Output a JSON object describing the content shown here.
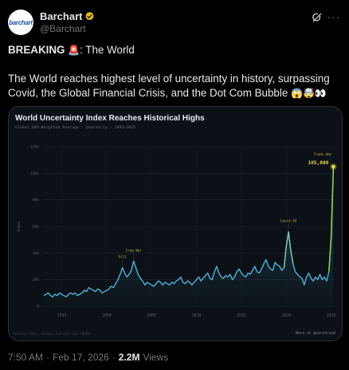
{
  "author": {
    "display_name": "Barchart",
    "handle": "@Barchart",
    "avatar_text": "barchart",
    "verified_color": "#e2b719"
  },
  "tweet": {
    "line1_bold": "BREAKING",
    "line1_emoji": "🚨",
    "line1_rest": ": The World",
    "line2": "The World reaches highest level of uncertainty in history, surpassing",
    "line3": "Covid, the Global Financial Crisis, and the Dot Com Bubble",
    "line3_emoji": "😱🤯👀"
  },
  "chart_data": {
    "type": "line",
    "title": "World Uncertainty Index Reaches Historical Highs",
    "subtitle": "Global GDP-Weighted Average · Quarterly · 1993–2025",
    "ylabel": "Index",
    "ylim": [
      0,
      120000
    ],
    "yticks": [
      {
        "value": 0,
        "label": "0"
      },
      {
        "value": 20000,
        "label": "20k"
      },
      {
        "value": 40000,
        "label": "40k"
      },
      {
        "value": 60000,
        "label": "60k"
      },
      {
        "value": 80000,
        "label": "80k"
      },
      {
        "value": 100000,
        "label": "100k"
      },
      {
        "value": 120000,
        "label": "120k"
      }
    ],
    "xlim": [
      1993,
      2025.3
    ],
    "xticks": [
      {
        "value": 1995,
        "label": "1995"
      },
      {
        "value": 2000,
        "label": "2000"
      },
      {
        "value": 2005,
        "label": "2005"
      },
      {
        "value": 2010,
        "label": "2010"
      },
      {
        "value": 2015,
        "label": "2015"
      },
      {
        "value": 2020,
        "label": "2020"
      },
      {
        "value": 2025,
        "label": "2025"
      }
    ],
    "grid": true,
    "line_color": "#4fb3d9",
    "highlight_color": "#8fd14f",
    "peak_color": "#e8d44d",
    "series": [
      {
        "x": [
          1993.0,
          1993.25,
          1993.5,
          1993.75,
          1994.0,
          1994.25,
          1994.5,
          1994.75,
          1995.0,
          1995.25,
          1995.5,
          1995.75,
          1996.0,
          1996.25,
          1996.5,
          1996.75,
          1997.0,
          1997.25,
          1997.5,
          1997.75,
          1998.0,
          1998.25,
          1998.5,
          1998.75,
          1999.0,
          1999.25,
          1999.5,
          1999.75,
          2000.0,
          2000.25,
          2000.5,
          2000.75,
          2001.0,
          2001.25,
          2001.5,
          2001.75,
          2002.0,
          2002.25,
          2002.5,
          2002.75,
          2003.0,
          2003.25,
          2003.5,
          2003.75,
          2004.0,
          2004.25,
          2004.5,
          2004.75,
          2005.0,
          2005.25,
          2005.5,
          2005.75,
          2006.0,
          2006.25,
          2006.5,
          2006.75,
          2007.0,
          2007.25,
          2007.5,
          2007.75,
          2008.0,
          2008.25,
          2008.5,
          2008.75,
          2009.0,
          2009.25,
          2009.5,
          2009.75,
          2010.0,
          2010.25,
          2010.5,
          2010.75,
          2011.0,
          2011.25,
          2011.5,
          2011.75,
          2012.0,
          2012.25,
          2012.5,
          2012.75,
          2013.0,
          2013.25,
          2013.5,
          2013.75,
          2014.0,
          2014.25,
          2014.5,
          2014.75,
          2015.0,
          2015.25,
          2015.5,
          2015.75,
          2016.0,
          2016.25,
          2016.5,
          2016.75,
          2017.0,
          2017.25,
          2017.5,
          2017.75,
          2018.0,
          2018.25,
          2018.5,
          2018.75,
          2019.0,
          2019.25,
          2019.5,
          2019.75,
          2020.0,
          2020.25,
          2020.5,
          2020.75,
          2021.0,
          2021.25,
          2021.5,
          2021.75,
          2022.0,
          2022.25,
          2022.5,
          2022.75,
          2023.0,
          2023.25,
          2023.5,
          2023.75,
          2024.0,
          2024.25,
          2024.5,
          2024.75,
          2025.0,
          2025.25
        ],
        "y": [
          8000,
          9000,
          10000,
          8000,
          7000,
          9000,
          8000,
          10000,
          9000,
          8000,
          7000,
          9000,
          10000,
          9000,
          10000,
          8000,
          9000,
          10000,
          12000,
          11000,
          14000,
          13000,
          12000,
          11000,
          13000,
          12000,
          10000,
          11000,
          12000,
          13000,
          15000,
          14000,
          17000,
          20000,
          24000,
          29000,
          25000,
          22000,
          24000,
          27000,
          34000,
          29000,
          24000,
          21000,
          19000,
          16000,
          18000,
          17000,
          16000,
          15000,
          17000,
          19000,
          18000,
          16000,
          18000,
          17000,
          16000,
          18000,
          17000,
          19000,
          20000,
          22000,
          18000,
          17000,
          19000,
          18000,
          16000,
          18000,
          20000,
          22000,
          19000,
          21000,
          23000,
          25000,
          21000,
          20000,
          26000,
          30000,
          25000,
          22000,
          21000,
          23000,
          22000,
          24000,
          20000,
          22000,
          26000,
          28000,
          25000,
          23000,
          22000,
          25000,
          24000,
          27000,
          30000,
          26000,
          25000,
          28000,
          32000,
          35000,
          30000,
          28000,
          27000,
          33000,
          31000,
          30000,
          27000,
          29000,
          45000,
          56000,
          42000,
          32000,
          26000,
          24000,
          22000,
          21000,
          16000,
          22000,
          25000,
          21000,
          19000,
          22000,
          20000,
          24000,
          20000,
          22000,
          19000,
          26000,
          52000,
          105000
        ]
      }
    ],
    "annotations": [
      {
        "label": "9/11",
        "x": 2001.75,
        "y": 29000
      },
      {
        "label": "Iraq War",
        "x": 2003.0,
        "y": 34000
      },
      {
        "label": "Covid-19",
        "x": 2020.25,
        "y": 56000
      },
      {
        "label": "Trade War",
        "x": 2025.25,
        "y": 105000
      }
    ],
    "peak_label": "105,000",
    "source": "Source: Ahir, Bloom, Furceri via FRED®",
    "watermark": "More at @zerotrend"
  },
  "meta": {
    "time": "7:50 AM",
    "date": "Feb 17, 2026",
    "views_count": "2.2M",
    "views_label": "Views",
    "separator": "·"
  }
}
